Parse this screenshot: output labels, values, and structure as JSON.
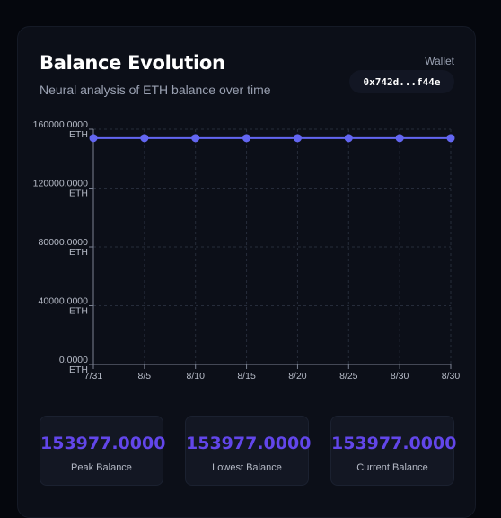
{
  "header": {
    "title": "Balance Evolution",
    "subtitle": "Neural analysis of ETH balance over time",
    "wallet_label": "Wallet",
    "wallet_address": "0x742d...f44e"
  },
  "chart_data": {
    "type": "line",
    "x": [
      "7/31",
      "8/5",
      "8/10",
      "8/15",
      "8/20",
      "8/25",
      "8/30",
      "8/30"
    ],
    "series": [
      {
        "values": [
          153977,
          153977,
          153977,
          153977,
          153977,
          153977,
          153977,
          153977
        ]
      }
    ],
    "y_ticks": [
      "0.0000\nETH",
      "40000.0000\nETH",
      "80000.0000\nETH",
      "120000.0000\nETH",
      "160000.0000\nETH"
    ],
    "ylim": [
      0,
      160000
    ],
    "grid": true,
    "line_color": "#6366f1"
  },
  "stats": [
    {
      "value": "153977.0000",
      "label": "Peak Balance"
    },
    {
      "value": "153977.0000",
      "label": "Lowest Balance"
    },
    {
      "value": "153977.0000",
      "label": "Current Balance"
    }
  ],
  "colors": {
    "accent": "#6246ea",
    "line": "#6366f1",
    "background": "#0c0f18"
  }
}
